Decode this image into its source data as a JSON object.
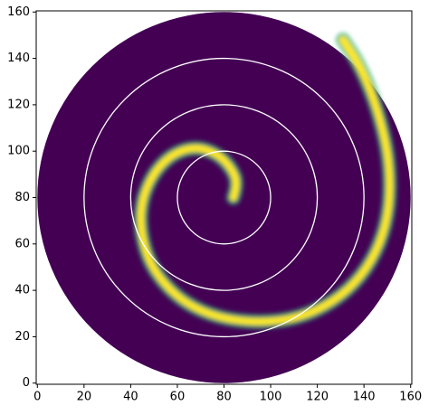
{
  "chart_data": {
    "type": "image",
    "xlim": [
      -0.5,
      160.5
    ],
    "ylim": [
      -0.5,
      160.5
    ],
    "xticks": [
      0,
      20,
      40,
      60,
      80,
      100,
      120,
      140,
      160
    ],
    "yticks": [
      0,
      20,
      40,
      60,
      80,
      100,
      120,
      140,
      160
    ],
    "disk": {
      "cx": 80,
      "cy": 80,
      "r": 80,
      "color": "#440154"
    },
    "curve": {
      "color": "#fde725",
      "glow": "#35b779",
      "x": [
        84,
        86,
        83,
        77,
        68,
        58,
        50,
        45,
        44,
        47,
        54,
        64,
        78,
        95,
        112,
        127,
        139,
        147,
        151,
        151,
        148,
        143,
        137,
        131
      ],
      "y": [
        80,
        86,
        93,
        99,
        102,
        99,
        91,
        80,
        68,
        54,
        43,
        34,
        28,
        26,
        28,
        35,
        46,
        60,
        76,
        94,
        110,
        126,
        139,
        148
      ]
    },
    "circles": {
      "color": "#ffffff",
      "cx": [
        80,
        80,
        80
      ],
      "cy": [
        80,
        80,
        80
      ],
      "r": [
        20,
        40,
        60
      ]
    }
  }
}
